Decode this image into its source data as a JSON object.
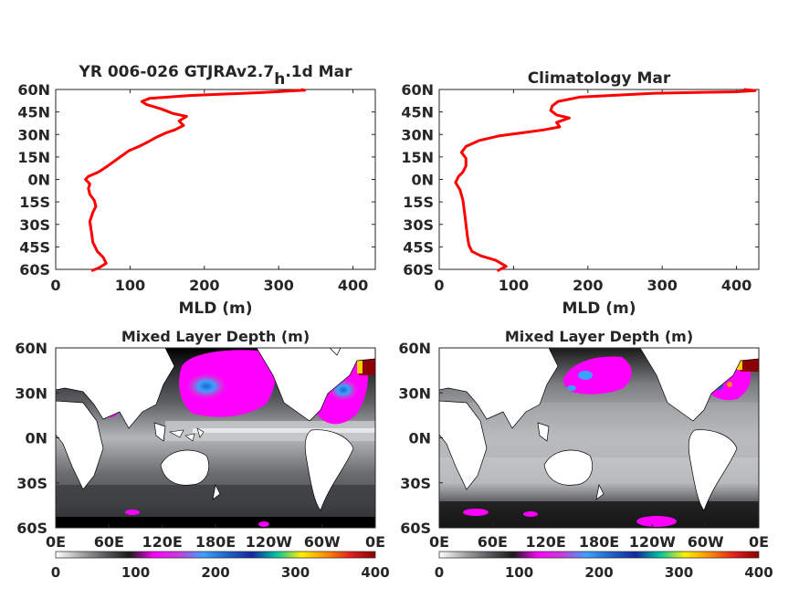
{
  "chart_data": [
    {
      "type": "line",
      "title_main": "YR 006-026 GTJRAv2.7",
      "title_sub": "h",
      "title_tail": ".1d Mar",
      "xlabel": "MLD (m)",
      "xlim": [
        0,
        430
      ],
      "ylim": [
        -60,
        60
      ],
      "x_ticks": [
        "0",
        "100",
        "200",
        "300",
        "400"
      ],
      "y_ticks": [
        "60N",
        "45N",
        "30N",
        "15N",
        "0N",
        "15S",
        "30S",
        "45S",
        "60S"
      ],
      "series": [
        {
          "color": "#ff0000",
          "points": [
            [
              48,
              -61
            ],
            [
              58,
              -59
            ],
            [
              68,
              -56
            ],
            [
              64,
              -52
            ],
            [
              56,
              -48
            ],
            [
              50,
              -42
            ],
            [
              48,
              -35
            ],
            [
              46,
              -28
            ],
            [
              50,
              -22
            ],
            [
              54,
              -18
            ],
            [
              52,
              -14
            ],
            [
              46,
              -10
            ],
            [
              44,
              -6
            ],
            [
              46,
              -3
            ],
            [
              40,
              0
            ],
            [
              44,
              2
            ],
            [
              58,
              5
            ],
            [
              70,
              9
            ],
            [
              84,
              14
            ],
            [
              98,
              19
            ],
            [
              112,
              22
            ],
            [
              124,
              25
            ],
            [
              135,
              28
            ],
            [
              148,
              31
            ],
            [
              160,
              33
            ],
            [
              172,
              36
            ],
            [
              166,
              39
            ],
            [
              176,
              42
            ],
            [
              158,
              44
            ],
            [
              142,
              47
            ],
            [
              122,
              50
            ],
            [
              116,
              52
            ],
            [
              126,
              54
            ],
            [
              180,
              56
            ],
            [
              280,
              58
            ],
            [
              335,
              59.5
            ],
            [
              330,
              60
            ]
          ]
        }
      ]
    },
    {
      "type": "line",
      "title": "Climatology Mar",
      "xlabel": "MLD (m)",
      "xlim": [
        0,
        430
      ],
      "ylim": [
        -60,
        60
      ],
      "x_ticks": [
        "0",
        "100",
        "200",
        "300",
        "400"
      ],
      "y_ticks": [
        "60N",
        "45N",
        "30N",
        "15N",
        "0N",
        "15S",
        "30S",
        "45S",
        "60S"
      ],
      "series": [
        {
          "color": "#ff0000",
          "points": [
            [
              78,
              -61
            ],
            [
              90,
              -58
            ],
            [
              76,
              -54
            ],
            [
              56,
              -51
            ],
            [
              44,
              -48
            ],
            [
              40,
              -44
            ],
            [
              38,
              -38
            ],
            [
              36,
              -30
            ],
            [
              34,
              -22
            ],
            [
              32,
              -14
            ],
            [
              28,
              -7
            ],
            [
              22,
              -2
            ],
            [
              26,
              2
            ],
            [
              32,
              5
            ],
            [
              36,
              9
            ],
            [
              36,
              14
            ],
            [
              30,
              18
            ],
            [
              36,
              22
            ],
            [
              54,
              26
            ],
            [
              80,
              29
            ],
            [
              110,
              31
            ],
            [
              140,
              33
            ],
            [
              162,
              35
            ],
            [
              158,
              38
            ],
            [
              175,
              41
            ],
            [
              158,
              43
            ],
            [
              150,
              46
            ],
            [
              152,
              49
            ],
            [
              160,
              52
            ],
            [
              190,
              55
            ],
            [
              290,
              57.5
            ],
            [
              400,
              58.5
            ],
            [
              425,
              59.2
            ],
            [
              410,
              60
            ]
          ]
        }
      ]
    },
    {
      "type": "heatmap",
      "title": "Mixed Layer Depth (m)",
      "x_ticks": [
        "0E",
        "60E",
        "120E",
        "180E",
        "120W",
        "60W",
        "0E"
      ],
      "y_ticks": [
        "60N",
        "30N",
        "0N",
        "30S",
        "60S"
      ],
      "xlim": [
        0,
        360
      ],
      "ylim": [
        -60,
        60
      ],
      "colorbar": {
        "range": [
          0,
          400
        ],
        "ticks": [
          "0",
          "100",
          "200",
          "300",
          "400"
        ],
        "stops": [
          "#ffffff",
          "#a7aaab",
          "#5a5c60",
          "#1a1a1a",
          "#ff00ff",
          "#c83cdc",
          "#3ca0ff",
          "#1e64c8",
          "#1428a0",
          "#00c8a0",
          "#fff000",
          "#ff8c00",
          "#e61e1e",
          "#8c0000"
        ]
      }
    },
    {
      "type": "heatmap",
      "title": "Mixed Layer Depth (m)",
      "x_ticks": [
        "0E",
        "60E",
        "120E",
        "180E",
        "120W",
        "60W",
        "0E"
      ],
      "y_ticks": [
        "60N",
        "30N",
        "0N",
        "30S",
        "60S"
      ],
      "xlim": [
        0,
        360
      ],
      "ylim": [
        -60,
        60
      ],
      "colorbar": {
        "range": [
          0,
          400
        ],
        "ticks": [
          "0",
          "100",
          "200",
          "300",
          "400"
        ],
        "stops": [
          "#ffffff",
          "#a7aaab",
          "#5a5c60",
          "#1a1a1a",
          "#ff00ff",
          "#c83cdc",
          "#3ca0ff",
          "#1e64c8",
          "#1428a0",
          "#00c8a0",
          "#fff000",
          "#ff8c00",
          "#e61e1e",
          "#8c0000"
        ]
      }
    }
  ]
}
